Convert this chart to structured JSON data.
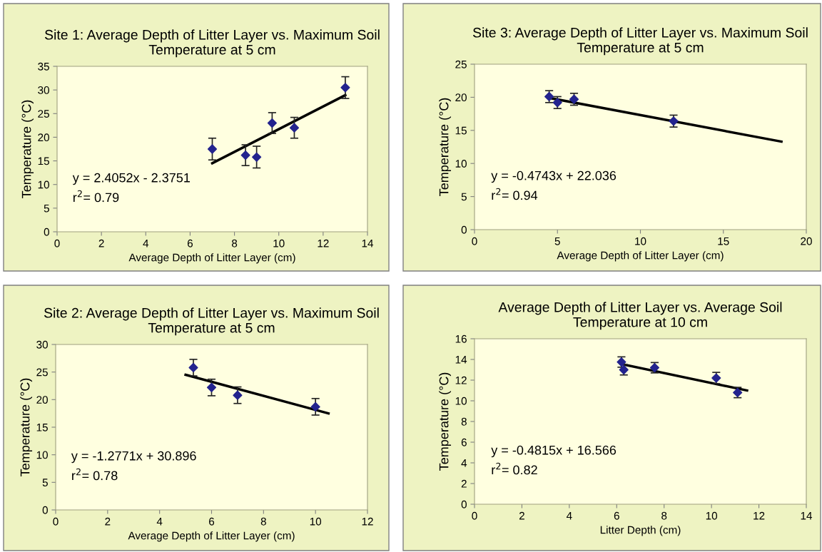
{
  "chart_data": [
    {
      "type": "scatter",
      "title": "Site 1: Average Depth of Litter Layer vs. Maximum Soil\nTemperature at 5 cm",
      "xlabel": "Average Depth of Litter Layer (cm)",
      "ylabel": "Temperature (°C)",
      "x": [
        7,
        8.5,
        9,
        9.7,
        10.7,
        13
      ],
      "values": [
        17.5,
        16.2,
        15.8,
        23,
        22,
        30.5
      ],
      "errors": [
        2.3,
        2.2,
        2.3,
        2.2,
        2.2,
        2.3
      ],
      "color": "#23238e",
      "marker": "diamond",
      "series": [
        {
          "type": "line",
          "x": [
            7,
            13
          ],
          "values": [
            14.5,
            28.9
          ],
          "color": "#000000",
          "marker": "none"
        }
      ],
      "annotations": [
        "y = 2.4052x - 2.3751",
        "r$^{2}$= 0.79"
      ],
      "xlim": [
        0,
        14
      ],
      "xticks": [
        0,
        2,
        4,
        6,
        8,
        10,
        12,
        14
      ],
      "ylim": [
        0,
        35
      ],
      "yticks": [
        0,
        5,
        10,
        15,
        20,
        25,
        30,
        35
      ],
      "grid": false,
      "legend": false
    },
    {
      "type": "scatter",
      "title": "Site 3: Average Depth of Litter Layer vs. Maximum Soil\nTemperature at 5 cm",
      "xlabel": "Average Depth of Litter Layer (cm)",
      "ylabel": "Temperature (°C)",
      "x": [
        4.5,
        5,
        6,
        12
      ],
      "values": [
        20.1,
        19.2,
        19.7,
        16.4
      ],
      "errors": [
        0.9,
        0.9,
        0.9,
        0.9
      ],
      "color": "#23238e",
      "marker": "diamond",
      "series": [
        {
          "type": "line",
          "x": [
            4.5,
            18.5
          ],
          "values": [
            19.9,
            13.3
          ],
          "color": "#000000",
          "marker": "none"
        }
      ],
      "annotations": [
        "y = -0.4743x + 22.036",
        "r$^{2}$= 0.94"
      ],
      "xlim": [
        0,
        20
      ],
      "xticks": [
        0,
        5,
        10,
        15,
        20
      ],
      "ylim": [
        0,
        25
      ],
      "yticks": [
        0,
        5,
        10,
        15,
        20,
        25
      ],
      "grid": false,
      "legend": false
    },
    {
      "type": "scatter",
      "title": "Site 2: Average Depth of Litter Layer vs. Maximum Soil\nTemperature at 5 cm",
      "xlabel": "Average Depth of Litter Layer (cm)",
      "ylabel": "Temperature (°C)",
      "x": [
        5.3,
        6,
        7,
        10
      ],
      "values": [
        25.8,
        22.2,
        20.8,
        18.7
      ],
      "errors": [
        1.5,
        1.5,
        1.5,
        1.5
      ],
      "color": "#23238e",
      "marker": "diamond",
      "series": [
        {
          "type": "line",
          "x": [
            5,
            10.5
          ],
          "values": [
            24.5,
            17.5
          ],
          "color": "#000000",
          "marker": "none"
        }
      ],
      "annotations": [
        "y = -1.2771x + 30.896",
        "r$^{2}$= 0.78"
      ],
      "xlim": [
        0,
        12
      ],
      "xticks": [
        0,
        2,
        4,
        6,
        8,
        10,
        12
      ],
      "ylim": [
        0,
        30
      ],
      "yticks": [
        0,
        5,
        10,
        15,
        20,
        25,
        30
      ],
      "grid": false,
      "legend": false
    },
    {
      "type": "scatter",
      "title": "Average Depth of Litter Layer vs. Average Soil\nTemperature at 10 cm",
      "xlabel": "Litter Depth (cm)",
      "ylabel": "Temperature (°C)",
      "x": [
        6.2,
        6.3,
        7.6,
        10.2,
        11.1
      ],
      "values": [
        13.75,
        13.0,
        13.2,
        12.2,
        10.8
      ],
      "errors": [
        0.5,
        0.5,
        0.5,
        0.55,
        0.5
      ],
      "color": "#23238e",
      "marker": "diamond",
      "series": [
        {
          "type": "line",
          "x": [
            6.3,
            11.5
          ],
          "values": [
            13.5,
            11.0
          ],
          "color": "#000000",
          "marker": "none"
        }
      ],
      "annotations": [
        "y = -0.4815x + 16.566",
        "r$^{2}$= 0.82"
      ],
      "xlim": [
        0,
        14
      ],
      "xticks": [
        0,
        2,
        4,
        6,
        8,
        10,
        12,
        14
      ],
      "ylim": [
        0,
        16
      ],
      "yticks": [
        0,
        2,
        4,
        6,
        8,
        10,
        12,
        14,
        16
      ],
      "grid": false,
      "legend": false
    }
  ]
}
